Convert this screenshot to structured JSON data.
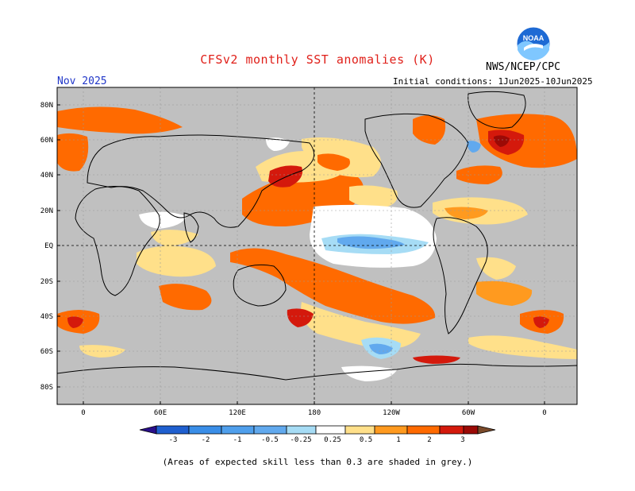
{
  "header": {
    "title": "CFSv2 monthly SST anomalies (K)",
    "agency": "NWS/NCEP/CPC",
    "month": "Nov 2025",
    "initial_conditions": "Initial conditions: 1Jun2025-10Jun2025",
    "logo_text": "NOAA"
  },
  "map": {
    "lat_labels": [
      "80N",
      "60N",
      "40N",
      "20N",
      "EQ",
      "20S",
      "40S",
      "60S",
      "80S"
    ],
    "lon_labels": [
      "0",
      "60E",
      "120E",
      "180",
      "120W",
      "60W",
      "0"
    ],
    "land_color": "#ffffff",
    "low_skill_color": "#c0c0c0"
  },
  "colorbar": {
    "labels": [
      "-3",
      "-2",
      "-1",
      "-0.5",
      "-0.25",
      "0.25",
      "0.5",
      "1",
      "2",
      "3"
    ],
    "colors": [
      "#2a0f8a",
      "#1f5fcf",
      "#3a8ee8",
      "#61a9ee",
      "#a6dcf5",
      "#ffffff",
      "#ffe08a",
      "#ff9a1f",
      "#ff6a00",
      "#d4190c",
      "#9b0a06",
      "#7a4a2a"
    ]
  },
  "footnote": "(Areas of expected skill less than 0.3 are shaded in grey.)"
}
